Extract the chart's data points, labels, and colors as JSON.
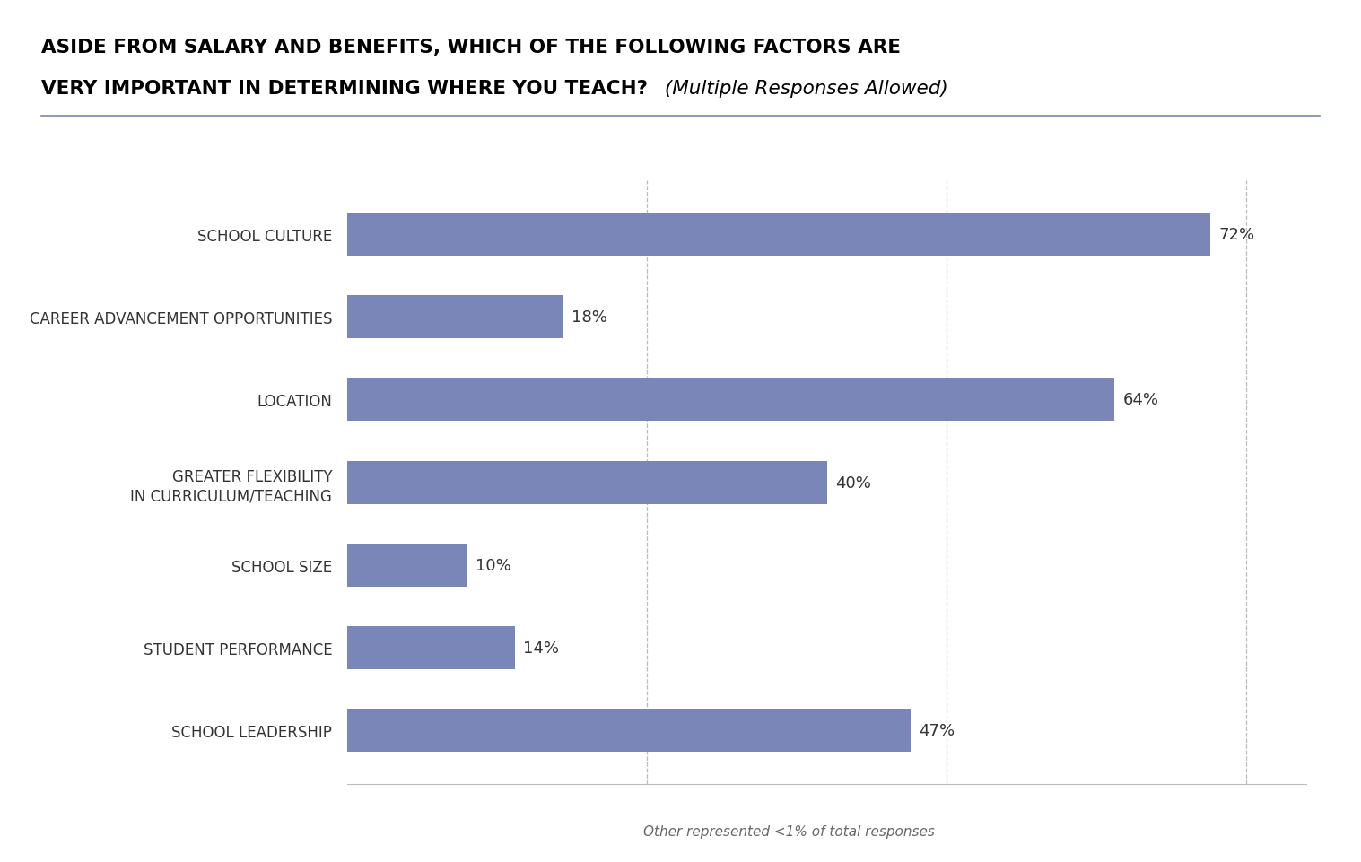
{
  "title_line1_bold": "ASIDE FROM SALARY AND BENEFITS, WHICH OF THE FOLLOWING FACTORS ARE",
  "title_line2_bold": "VERY IMPORTANT IN DETERMINING WHERE YOU TEACH?",
  "title_line2_italic": " (Multiple Responses Allowed)",
  "categories": [
    "SCHOOL CULTURE",
    "CAREER ADVANCEMENT OPPORTUNITIES",
    "LOCATION",
    "GREATER FLEXIBILITY\nIN CURRICULUM/TEACHING",
    "SCHOOL SIZE",
    "STUDENT PERFORMANCE",
    "SCHOOL LEADERSHIP"
  ],
  "values": [
    72,
    18,
    64,
    40,
    10,
    14,
    47
  ],
  "bar_color": "#7b86b8",
  "label_color": "#333333",
  "title_color": "#000000",
  "footnote": "Other represented <1% of total responses",
  "xlim": [
    0,
    80
  ],
  "grid_values": [
    25,
    50,
    75
  ],
  "bar_height": 0.52,
  "background_color": "#ffffff",
  "separator_color": "#7b86b8"
}
